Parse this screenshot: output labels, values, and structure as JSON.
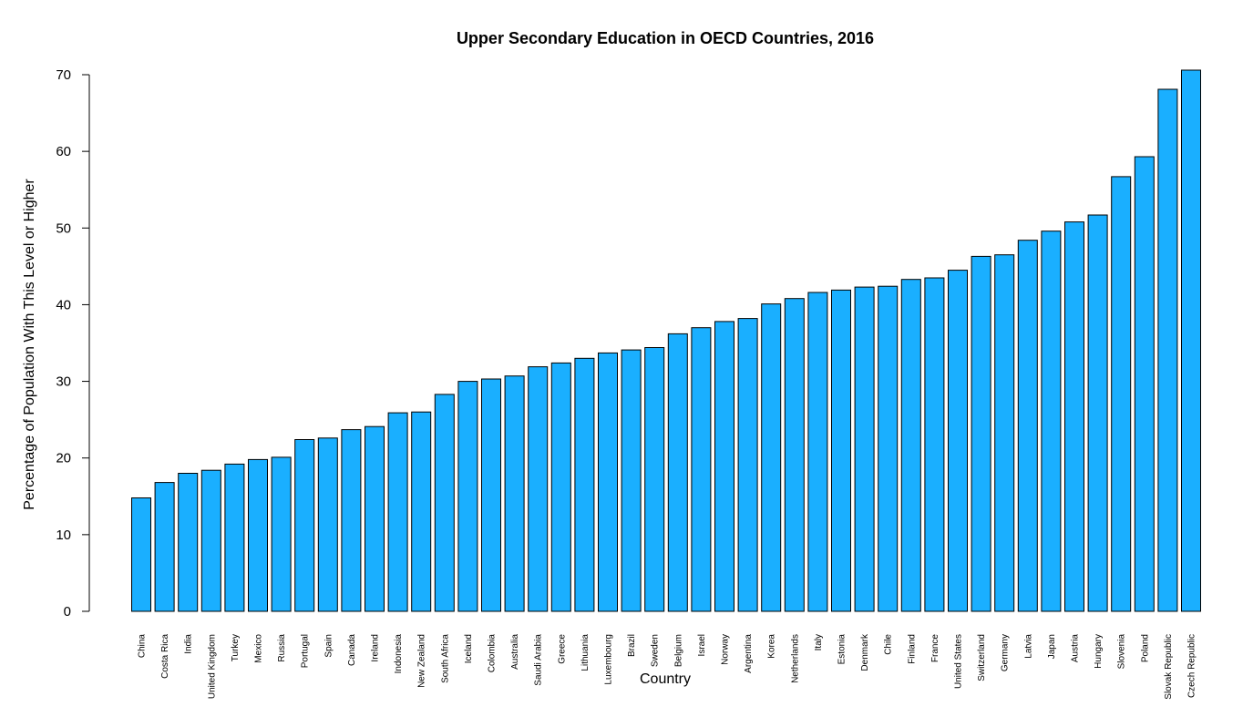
{
  "chart_data": {
    "type": "bar",
    "title": "Upper Secondary Education in OECD Countries, 2016",
    "xlabel": "Country",
    "ylabel": "Percentage of Population With This Level or Higher",
    "ylim": [
      0,
      70
    ],
    "yticks": [
      0,
      10,
      20,
      30,
      40,
      50,
      60,
      70
    ],
    "bar_color": "#1AAFFF",
    "categories": [
      "China",
      "Costa Rica",
      "India",
      "United Kingdom",
      "Turkey",
      "Mexico",
      "Russia",
      "Portugal",
      "Spain",
      "Canada",
      "Ireland",
      "Indonesia",
      "New Zealand",
      "South Africa",
      "Iceland",
      "Colombia",
      "Australia",
      "Saudi Arabia",
      "Greece",
      "Lithuania",
      "Luxembourg",
      "Brazil",
      "Sweden",
      "Belgium",
      "Israel",
      "Norway",
      "Argentina",
      "Korea",
      "Netherlands",
      "Italy",
      "Estonia",
      "Denmark",
      "Chile",
      "Finland",
      "France",
      "United States",
      "Switzerland",
      "Germany",
      "Latvia",
      "Japan",
      "Austria",
      "Hungary",
      "Slovenia",
      "Poland",
      "Slovak Republic",
      "Czech Republic"
    ],
    "values": [
      14.8,
      16.8,
      18.0,
      18.4,
      19.2,
      19.8,
      20.1,
      22.4,
      22.6,
      23.7,
      24.1,
      25.9,
      26.0,
      28.3,
      30.0,
      30.3,
      30.7,
      31.9,
      32.4,
      33.0,
      33.7,
      34.1,
      34.4,
      36.2,
      37.0,
      37.8,
      38.2,
      40.1,
      40.8,
      41.6,
      41.9,
      42.3,
      42.4,
      43.3,
      43.5,
      44.5,
      46.3,
      46.5,
      48.4,
      49.6,
      50.8,
      51.7,
      56.7,
      59.3,
      68.1,
      70.6
    ]
  }
}
